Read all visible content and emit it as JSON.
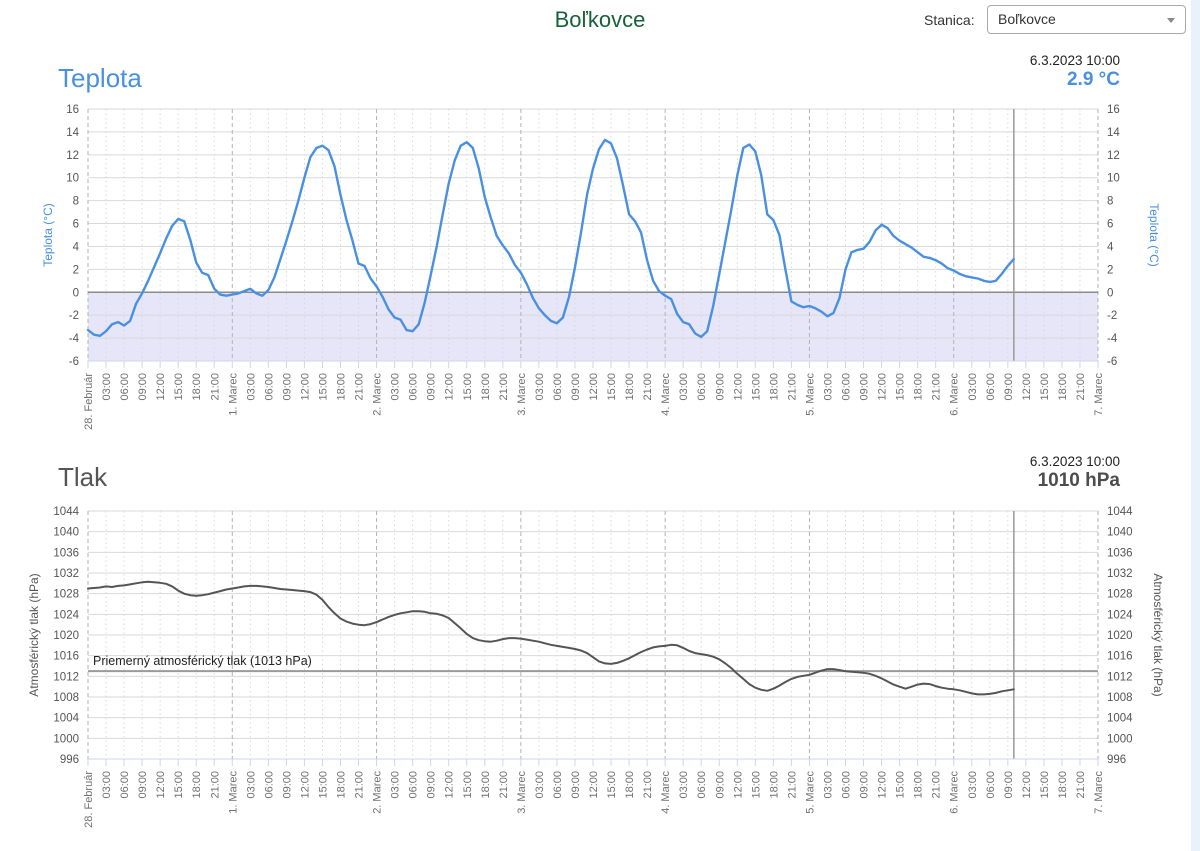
{
  "page": {
    "title": "Boľkovce",
    "station_label": "Stanica:",
    "station_value": "Boľkovce",
    "colors": {
      "header_green": "#17623a",
      "accent_blue": "#4a90e2",
      "pressure_gray": "#555555",
      "grid": "#d9d9d9",
      "day_grid": "#b3b3b3",
      "minor_grid": "#d8d8d8",
      "axis_line": "#ccd6eb",
      "band_lavender": "#e6e6f8",
      "current_time_line": "#999999",
      "scrollbar_track": "#e9f2fc",
      "tick_label": "#555555",
      "x_label": "#707070"
    }
  },
  "chart_data": [
    {
      "type": "line",
      "id": "temperature",
      "title": "Teplota",
      "timestamp": "6.3.2023 10:00",
      "current_value": "2.9 °C",
      "y_axis_label": "Teplota (°C)",
      "y_axis_label_color": "#4a90e2",
      "y_min": -6,
      "y_max": 16,
      "y_ticks": [
        16,
        14,
        12,
        10,
        8,
        6,
        4,
        2,
        0,
        -2,
        -4,
        -6
      ],
      "x_total_hours": 168,
      "x_tick_interval_hours": 3,
      "x_day_label_every": 8,
      "current_time_hour": 154,
      "x_tick_labels": [
        "28. Február",
        "03:00",
        "06:00",
        "09:00",
        "12:00",
        "15:00",
        "18:00",
        "21:00",
        "1. Marec",
        "03:00",
        "06:00",
        "09:00",
        "12:00",
        "15:00",
        "18:00",
        "21:00",
        "2. Marec",
        "03:00",
        "06:00",
        "09:00",
        "12:00",
        "15:00",
        "18:00",
        "21:00",
        "3. Marec",
        "03:00",
        "06:00",
        "09:00",
        "12:00",
        "15:00",
        "18:00",
        "21:00",
        "4. Marec",
        "03:00",
        "06:00",
        "09:00",
        "12:00",
        "15:00",
        "18:00",
        "21:00",
        "5. Marec",
        "03:00",
        "06:00",
        "09:00",
        "12:00",
        "15:00",
        "18:00",
        "21:00",
        "6. Marec",
        "03:00",
        "06:00",
        "09:00",
        "12:00",
        "15:00",
        "18:00",
        "21:00",
        "7. Marec"
      ],
      "plot_bands": [
        {
          "from": -6,
          "to": 0,
          "color": "#e6e6f8"
        }
      ],
      "plot_lines": [
        {
          "value": 0,
          "color": "#8a8a8a",
          "width": 1.5,
          "label": ""
        }
      ],
      "series": [
        {
          "name": "Teplota",
          "color": "#4a90e2",
          "width": 2.4,
          "start": "28. Február 00:00",
          "step_hours": 1,
          "values": [
            -3.3,
            -3.7,
            -3.8,
            -3.4,
            -2.8,
            -2.6,
            -2.9,
            -2.5,
            -1.0,
            -0.1,
            1.0,
            2.2,
            3.4,
            4.7,
            5.8,
            6.4,
            6.2,
            4.6,
            2.6,
            1.7,
            1.5,
            0.3,
            -0.2,
            -0.3,
            -0.2,
            -0.1,
            0.1,
            0.3,
            -0.1,
            -0.3,
            0.2,
            1.3,
            2.9,
            4.5,
            6.2,
            8.0,
            10.0,
            11.8,
            12.6,
            12.8,
            12.4,
            11.0,
            8.5,
            6.3,
            4.5,
            2.5,
            2.3,
            1.2,
            0.5,
            -0.4,
            -1.5,
            -2.2,
            -2.4,
            -3.3,
            -3.4,
            -2.8,
            -0.9,
            1.5,
            4.0,
            6.8,
            9.5,
            11.5,
            12.8,
            13.1,
            12.6,
            10.8,
            8.3,
            6.5,
            4.9,
            4.1,
            3.4,
            2.4,
            1.7,
            0.7,
            -0.5,
            -1.4,
            -2.0,
            -2.5,
            -2.7,
            -2.2,
            -0.4,
            2.2,
            5.2,
            8.5,
            10.8,
            12.5,
            13.3,
            13.0,
            11.7,
            9.3,
            6.8,
            6.2,
            5.2,
            2.8,
            1.0,
            0.1,
            -0.3,
            -0.6,
            -1.9,
            -2.6,
            -2.8,
            -3.6,
            -3.9,
            -3.4,
            -1.2,
            1.6,
            4.4,
            7.2,
            10.2,
            12.6,
            12.9,
            12.3,
            10.2,
            6.8,
            6.3,
            5.0,
            2.0,
            -0.8,
            -1.1,
            -1.3,
            -1.2,
            -1.4,
            -1.7,
            -2.1,
            -1.8,
            -0.5,
            2.0,
            3.5,
            3.7,
            3.8,
            4.4,
            5.4,
            5.9,
            5.6,
            4.9,
            4.5,
            4.2,
            3.9,
            3.5,
            3.1,
            3.0,
            2.8,
            2.5,
            2.1,
            1.9,
            1.6,
            1.4,
            1.3,
            1.2,
            1.0,
            0.9,
            1.0,
            1.6,
            2.3,
            2.9
          ]
        }
      ]
    },
    {
      "type": "line",
      "id": "pressure",
      "title": "Tlak",
      "timestamp": "6.3.2023 10:00",
      "current_value": "1010 hPa",
      "y_axis_label": "Atmosférický tlak (hPa)",
      "y_axis_label_color": "#555555",
      "y_min": 996,
      "y_max": 1044,
      "y_ticks": [
        1044,
        1040,
        1036,
        1032,
        1028,
        1024,
        1020,
        1016,
        1012,
        1008,
        1004,
        1000,
        996
      ],
      "x_total_hours": 168,
      "x_tick_interval_hours": 3,
      "x_day_label_every": 8,
      "current_time_hour": 154,
      "x_tick_labels": [
        "28. Február",
        "03:00",
        "06:00",
        "09:00",
        "12:00",
        "15:00",
        "18:00",
        "21:00",
        "1. Marec",
        "03:00",
        "06:00",
        "09:00",
        "12:00",
        "15:00",
        "18:00",
        "21:00",
        "2. Marec",
        "03:00",
        "06:00",
        "09:00",
        "12:00",
        "15:00",
        "18:00",
        "21:00",
        "3. Marec",
        "03:00",
        "06:00",
        "09:00",
        "12:00",
        "15:00",
        "18:00",
        "21:00",
        "4. Marec",
        "03:00",
        "06:00",
        "09:00",
        "12:00",
        "15:00",
        "18:00",
        "21:00",
        "5. Marec",
        "03:00",
        "06:00",
        "09:00",
        "12:00",
        "15:00",
        "18:00",
        "21:00",
        "6. Marec",
        "03:00",
        "06:00",
        "09:00",
        "12:00",
        "15:00",
        "18:00",
        "21:00",
        "7. Marec"
      ],
      "plot_bands": [],
      "plot_lines": [
        {
          "value": 1013,
          "color": "#9a9a9a",
          "width": 2,
          "label": "Priemerný atmosférický tlak (1013 hPa)"
        }
      ],
      "series": [
        {
          "name": "Atmosférický tlak",
          "color": "#555555",
          "width": 2,
          "start": "28. Február 00:00",
          "step_hours": 1,
          "values": [
            1029,
            1029.1,
            1029.2,
            1029.4,
            1029.3,
            1029.5,
            1029.6,
            1029.8,
            1030,
            1030.2,
            1030.3,
            1030.2,
            1030.1,
            1029.9,
            1029.4,
            1028.6,
            1028,
            1027.7,
            1027.6,
            1027.7,
            1027.9,
            1028.2,
            1028.5,
            1028.8,
            1029,
            1029.2,
            1029.4,
            1029.5,
            1029.5,
            1029.4,
            1029.3,
            1029.1,
            1028.9,
            1028.8,
            1028.7,
            1028.6,
            1028.5,
            1028.3,
            1027.8,
            1026.8,
            1025.4,
            1024.2,
            1023.2,
            1022.6,
            1022.2,
            1022,
            1021.9,
            1022.1,
            1022.5,
            1023,
            1023.5,
            1023.9,
            1024.2,
            1024.4,
            1024.6,
            1024.6,
            1024.5,
            1024.2,
            1024.1,
            1023.8,
            1023.3,
            1022.3,
            1021.3,
            1020.2,
            1019.4,
            1019,
            1018.8,
            1018.7,
            1018.9,
            1019.2,
            1019.4,
            1019.4,
            1019.3,
            1019.1,
            1018.9,
            1018.7,
            1018.4,
            1018.1,
            1017.9,
            1017.7,
            1017.5,
            1017.3,
            1017,
            1016.5,
            1015.7,
            1014.9,
            1014.5,
            1014.4,
            1014.6,
            1015,
            1015.5,
            1016.1,
            1016.7,
            1017.2,
            1017.6,
            1017.8,
            1017.9,
            1018.1,
            1018,
            1017.5,
            1016.9,
            1016.5,
            1016.3,
            1016.1,
            1015.8,
            1015.3,
            1014.5,
            1013.6,
            1012.5,
            1011.5,
            1010.5,
            1009.8,
            1009.4,
            1009.2,
            1009.6,
            1010.2,
            1010.9,
            1011.5,
            1011.9,
            1012.1,
            1012.3,
            1012.7,
            1013.1,
            1013.4,
            1013.4,
            1013.2,
            1013,
            1012.9,
            1012.8,
            1012.7,
            1012.5,
            1012.1,
            1011.6,
            1011,
            1010.4,
            1010,
            1009.6,
            1010,
            1010.4,
            1010.6,
            1010.5,
            1010.1,
            1009.8,
            1009.6,
            1009.5,
            1009.3,
            1009,
            1008.7,
            1008.5,
            1008.5,
            1008.6,
            1008.8,
            1009.1,
            1009.3,
            1009.5
          ]
        }
      ]
    }
  ]
}
